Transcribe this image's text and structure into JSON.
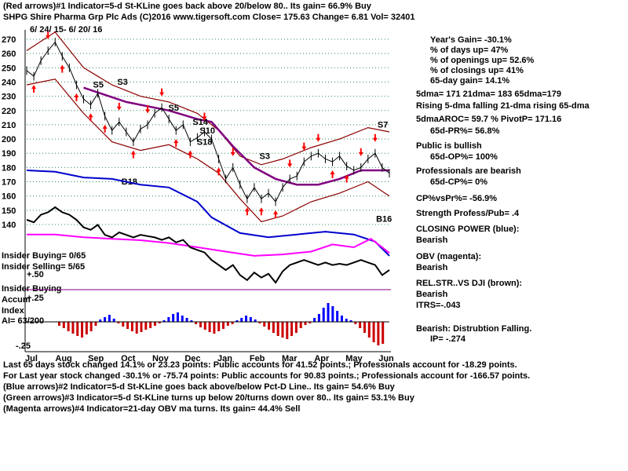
{
  "header": {
    "line1": "(Red arrows)#1 Indicator=5-d St-KLine goes back above 20/below 80.. Its gain= 66.9% Buy",
    "line2": "SHPG   Shire Pharma Grp Plc Ads  (C)2016 www.tigersoft.com     Close=  175.63  Change= 6.81 Vol=  32401",
    "date_range": "6/ 24/ 15-  6/ 20/ 16"
  },
  "colors": {
    "price": "#000000",
    "bands": "#8b0000",
    "ma65": "#800080",
    "closing_power": "#0000cd",
    "obv": "#ff00ff",
    "relstr": "#000000",
    "buy_arrow": "#ff0000",
    "grid": "#2e8b57",
    "accum_pos": "#0000ff",
    "accum_neg": "#cc0000"
  },
  "chart_data": {
    "type": "line",
    "title": "SHPG Shire Pharma Grp Plc Ads",
    "ylim": [
      130,
      275
    ],
    "y_ticks": [
      270,
      260,
      250,
      240,
      230,
      220,
      210,
      200,
      190,
      180,
      170,
      160,
      150,
      140
    ],
    "months": [
      "Jul",
      "Aug",
      "Sep",
      "Oct",
      "Nov",
      "Dec",
      "Jan",
      "Feb",
      "Mar",
      "Apr",
      "May",
      "Jun"
    ],
    "close_points": [
      [
        0,
        248
      ],
      [
        5,
        244
      ],
      [
        10,
        255
      ],
      [
        15,
        262
      ],
      [
        20,
        268
      ],
      [
        25,
        258
      ],
      [
        30,
        250
      ],
      [
        35,
        238
      ],
      [
        40,
        228
      ],
      [
        45,
        224
      ],
      [
        50,
        232
      ],
      [
        55,
        216
      ],
      [
        60,
        206
      ],
      [
        65,
        212
      ],
      [
        70,
        205
      ],
      [
        75,
        198
      ],
      [
        80,
        207
      ],
      [
        85,
        210
      ],
      [
        90,
        218
      ],
      [
        95,
        222
      ],
      [
        100,
        214
      ],
      [
        105,
        206
      ],
      [
        110,
        210
      ],
      [
        115,
        198
      ],
      [
        120,
        201
      ],
      [
        125,
        205
      ],
      [
        130,
        200
      ],
      [
        135,
        186
      ],
      [
        140,
        172
      ],
      [
        145,
        180
      ],
      [
        150,
        168
      ],
      [
        155,
        158
      ],
      [
        160,
        166
      ],
      [
        165,
        158
      ],
      [
        170,
        162
      ],
      [
        175,
        156
      ],
      [
        180,
        166
      ],
      [
        185,
        172
      ],
      [
        190,
        174
      ],
      [
        195,
        184
      ],
      [
        200,
        188
      ],
      [
        205,
        190
      ],
      [
        210,
        186
      ],
      [
        215,
        184
      ],
      [
        220,
        188
      ],
      [
        225,
        181
      ],
      [
        230,
        178
      ],
      [
        235,
        180
      ],
      [
        240,
        186
      ],
      [
        245,
        190
      ],
      [
        250,
        180
      ],
      [
        255,
        176
      ]
    ],
    "upper_band": [
      [
        0,
        262
      ],
      [
        20,
        275
      ],
      [
        40,
        250
      ],
      [
        60,
        238
      ],
      [
        80,
        230
      ],
      [
        100,
        226
      ],
      [
        120,
        218
      ],
      [
        135,
        206
      ],
      [
        150,
        188
      ],
      [
        165,
        182
      ],
      [
        180,
        186
      ],
      [
        200,
        194
      ],
      [
        220,
        200
      ],
      [
        240,
        208
      ],
      [
        255,
        205
      ]
    ],
    "lower_band": [
      [
        0,
        238
      ],
      [
        20,
        242
      ],
      [
        40,
        218
      ],
      [
        60,
        198
      ],
      [
        80,
        192
      ],
      [
        100,
        196
      ],
      [
        120,
        186
      ],
      [
        135,
        176
      ],
      [
        150,
        158
      ],
      [
        165,
        142
      ],
      [
        180,
        146
      ],
      [
        200,
        156
      ],
      [
        220,
        162
      ],
      [
        240,
        170
      ],
      [
        255,
        160
      ]
    ],
    "ma65_points": [
      [
        40,
        236
      ],
      [
        70,
        226
      ],
      [
        100,
        220
      ],
      [
        120,
        214
      ],
      [
        130,
        212
      ],
      [
        145,
        195
      ],
      [
        160,
        180
      ],
      [
        175,
        172
      ],
      [
        190,
        168
      ],
      [
        205,
        168
      ],
      [
        220,
        172
      ],
      [
        235,
        178
      ],
      [
        255,
        178
      ]
    ],
    "arrow_marks": [
      {
        "label": "S5",
        "day": 45,
        "price": 236
      },
      {
        "label": "S3",
        "day": 62,
        "price": 238
      },
      {
        "label": "S5",
        "day": 98,
        "price": 220
      },
      {
        "label": "S10",
        "day": 120,
        "price": 204
      },
      {
        "label": "S14",
        "day": 115,
        "price": 210
      },
      {
        "label": "S18",
        "day": 118,
        "price": 196
      },
      {
        "label": "S3",
        "day": 162,
        "price": 186
      },
      {
        "label": "S7",
        "day": 245,
        "price": 208
      },
      {
        "label": "B18",
        "day": 65,
        "price": 168
      },
      {
        "label": "B16",
        "day": 244,
        "price": 142
      }
    ],
    "closing_power": [
      [
        0,
        178
      ],
      [
        20,
        177
      ],
      [
        40,
        173
      ],
      [
        60,
        172
      ],
      [
        80,
        168
      ],
      [
        100,
        166
      ],
      [
        120,
        156
      ],
      [
        130,
        145
      ],
      [
        150,
        134
      ],
      [
        170,
        131
      ],
      [
        190,
        133
      ],
      [
        210,
        135
      ],
      [
        230,
        133
      ],
      [
        245,
        128
      ],
      [
        255,
        118
      ]
    ],
    "obv": [
      [
        0,
        133
      ],
      [
        20,
        133
      ],
      [
        40,
        131
      ],
      [
        60,
        130
      ],
      [
        80,
        129
      ],
      [
        100,
        127
      ],
      [
        120,
        124
      ],
      [
        140,
        121
      ],
      [
        160,
        118
      ],
      [
        180,
        119
      ],
      [
        200,
        121
      ],
      [
        215,
        126
      ],
      [
        230,
        124
      ],
      [
        242,
        130
      ],
      [
        250,
        124
      ],
      [
        255,
        120
      ]
    ],
    "relstr_points": [
      [
        0,
        140
      ],
      [
        5,
        138
      ],
      [
        10,
        144
      ],
      [
        15,
        146
      ],
      [
        20,
        150
      ],
      [
        25,
        146
      ],
      [
        30,
        144
      ],
      [
        35,
        140
      ],
      [
        40,
        134
      ],
      [
        45,
        132
      ],
      [
        50,
        136
      ],
      [
        55,
        128
      ],
      [
        60,
        126
      ],
      [
        65,
        130
      ],
      [
        70,
        128
      ],
      [
        75,
        126
      ],
      [
        80,
        128
      ],
      [
        85,
        127
      ],
      [
        90,
        126
      ],
      [
        95,
        124
      ],
      [
        100,
        126
      ],
      [
        105,
        122
      ],
      [
        110,
        124
      ],
      [
        115,
        118
      ],
      [
        120,
        116
      ],
      [
        125,
        114
      ],
      [
        130,
        108
      ],
      [
        135,
        104
      ],
      [
        140,
        100
      ],
      [
        145,
        104
      ],
      [
        150,
        96
      ],
      [
        155,
        92
      ],
      [
        160,
        98
      ],
      [
        165,
        94
      ],
      [
        170,
        97
      ],
      [
        175,
        90
      ],
      [
        180,
        99
      ],
      [
        185,
        104
      ],
      [
        190,
        106
      ],
      [
        195,
        108
      ],
      [
        200,
        106
      ],
      [
        205,
        104
      ],
      [
        210,
        106
      ],
      [
        215,
        104
      ],
      [
        220,
        105
      ],
      [
        225,
        104
      ],
      [
        230,
        106
      ],
      [
        235,
        108
      ],
      [
        240,
        106
      ],
      [
        245,
        104
      ],
      [
        250,
        96
      ],
      [
        255,
        100
      ]
    ],
    "accum_values": [
      -0.05,
      -0.08,
      -0.12,
      -0.15,
      -0.18,
      -0.2,
      -0.16,
      -0.12,
      -0.05,
      0.03,
      0.06,
      0.09,
      0.04,
      -0.02,
      -0.06,
      -0.09,
      -0.12,
      -0.15,
      -0.13,
      -0.1,
      -0.08,
      -0.05,
      -0.02,
      0.02,
      0.06,
      0.1,
      0.12,
      0.08,
      0.05,
      0.02,
      -0.03,
      -0.07,
      -0.1,
      -0.13,
      -0.15,
      -0.12,
      -0.09,
      -0.05,
      -0.03,
      0.02,
      0.05,
      0.08,
      0.06,
      0.03,
      -0.02,
      -0.06,
      -0.1,
      -0.14,
      -0.18,
      -0.2,
      -0.22,
      -0.18,
      -0.14,
      -0.08,
      -0.04,
      -0.02,
      0.05,
      0.1,
      0.18,
      0.24,
      0.2,
      0.14,
      0.08,
      0.04,
      0.02,
      -0.03,
      -0.08,
      -0.14,
      -0.2,
      -0.26,
      -0.3,
      -0.28
    ]
  },
  "left_labels": {
    "insider_buying": "Insider Buying= 0/65",
    "insider_selling": "Insider Selling= 5/65",
    "plus50": "+.50",
    "insider_buying2": "Insider Buying",
    "accum": "Accum",
    "plus25": "+.25",
    "index": "Index",
    "ai": "AI= 63/200",
    "minus25": "-.25"
  },
  "right_panel": {
    "years_gain": "Year's Gain= -30.1%",
    "days_up": "% of days up= 47%",
    "openings_up": "% of openings up= 52.6%",
    "closings_up": "% of closings up= 41%",
    "day65_gain": "65-day gain= 14.1%",
    "dma": "5dma= 171  21dma= 183  65dma=179",
    "rising": "Rising 5-dma falling 21-dma rising 65-dma",
    "aroc": "5dmaAROC= 59.7 %  PivotP= 171.16",
    "pr": "65d-PR%= 56.8%",
    "public_bullish": "Public is bullish",
    "op": "65d-OP%=  100%",
    "pros_bearish": "Professionals are bearish",
    "cp": "65d-CP%= 0%",
    "cpvspr": "CP%vsPr%= -56.9%",
    "strength": "Strength Profess/Pub= .4",
    "closing_power": "CLOSING POWER (blue):",
    "cp_bearish": "Bearish",
    "obv": "OBV (magenta):",
    "obv_bearish": "Bearish",
    "relstr": "REL.STR..VS DJI (brown):",
    "relstr_bearish": "Bearish",
    "itrs": "ITRS=-.043",
    "dist": "Bearish: Distrubtion Falling.",
    "ip": "IP= -.274"
  },
  "footer": {
    "line1": "Last 65 days stock changed  14.1% or  23.23 points:  Public accounts for  41.52 points.;  Professionals account for -18.29 points.",
    "line2": "For Last year stock changed -30.1% or -75.74 points:  Public accounts for  90.83 points.;  Professionals account for -166.57 points.",
    "line3": "(Blue arrows)#2 Indicator=5-d St-KLine goes back above/below Pct-D Line.. Its gain= 54.6% Buy",
    "line4": "(Green arrows)#3 Indicator=5-d St-KLine turns up below 20/turns down over 80.. Its gain= 53.1% Buy",
    "line5": "(Magenta arrows)#4 Indicator=21-day OBV ma turns. Its gain= 44.4% Sell"
  }
}
